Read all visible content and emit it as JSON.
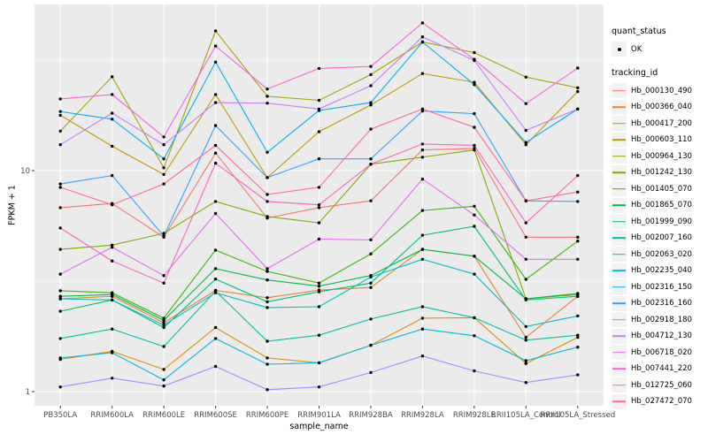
{
  "figure": {
    "y_axis_title": "FPKM + 1",
    "x_axis_title": "sample_name",
    "panel_background": "#EBEBEB",
    "grid_color": "#FFFFFF",
    "tick_color": "#333333",
    "tick_label_color": "#4D4D4D"
  },
  "legend": {
    "quant_status": {
      "title": "quant_status",
      "items": [
        {
          "label": "OK",
          "symbol": "point-icon",
          "color": "#000000"
        }
      ]
    },
    "tracking_id": {
      "title": "tracking_id"
    }
  },
  "chart_data": {
    "type": "line",
    "title": "",
    "xlabel": "sample_name",
    "ylabel": "FPKM + 1",
    "y_scale": "log10",
    "ylim": [
      0.87,
      56
    ],
    "y_ticks": [
      1,
      10
    ],
    "y_minor_ticks": [
      3.162,
      31.62
    ],
    "grid": true,
    "legend_position": "right",
    "marker": {
      "shape": "solid-circle",
      "color": "#000000"
    },
    "categories": [
      "PB350LA",
      "RRIM600LA",
      "RRIM600LE",
      "RRIM600SE",
      "RRIM600PE",
      "RRIM901LA",
      "RRIM928BA",
      "RRIM928LA",
      "RRIM928LE",
      "RRII105LA_Control",
      "RRII105LA_Stressed"
    ],
    "series": [
      {
        "name": "Hb_000130_490",
        "color": "#F8766D",
        "values": [
          6.8,
          7.1,
          5.0,
          12.0,
          6.1,
          6.8,
          7.3,
          12.4,
          12.6,
          5.0,
          5.0
        ]
      },
      {
        "name": "Hb_000366_040",
        "color": "#EA8331",
        "values": [
          2.63,
          2.7,
          2.05,
          2.87,
          2.66,
          2.88,
          2.96,
          4.4,
          4.1,
          1.76,
          2.7
        ]
      },
      {
        "name": "Hb_000417_200",
        "color": "#D89000",
        "values": [
          1.4,
          1.52,
          1.26,
          1.95,
          1.42,
          1.35,
          1.62,
          2.15,
          2.16,
          1.34,
          1.76
        ]
      },
      {
        "name": "Hb_000603_110",
        "color": "#C09B00",
        "values": [
          17.8,
          12.9,
          9.6,
          22.1,
          9.3,
          15.0,
          19.8,
          27.5,
          25.1,
          13.1,
          22.8
        ]
      },
      {
        "name": "Hb_000964_130",
        "color": "#A3A500",
        "values": [
          15.1,
          26.6,
          10.3,
          42.9,
          21.7,
          20.8,
          27.2,
          38.2,
          34.2,
          26.5,
          23.7
        ]
      },
      {
        "name": "Hb_001242_130",
        "color": "#7CAE00",
        "values": [
          4.4,
          4.6,
          5.2,
          7.25,
          6.2,
          5.8,
          10.7,
          11.5,
          12.4,
          2.63,
          2.75
        ]
      },
      {
        "name": "Hb_001405_070",
        "color": "#39B600",
        "values": [
          2.86,
          2.8,
          2.15,
          4.37,
          3.5,
          3.1,
          4.2,
          6.6,
          6.9,
          3.22,
          4.8
        ]
      },
      {
        "name": "Hb_001865_070",
        "color": "#00BB4E",
        "values": [
          2.7,
          2.75,
          2.1,
          3.6,
          3.2,
          3.0,
          3.35,
          4.4,
          4.1,
          2.63,
          2.78
        ]
      },
      {
        "name": "Hb_001999_090",
        "color": "#00BF7D",
        "values": [
          2.31,
          2.6,
          1.95,
          3.23,
          2.55,
          2.83,
          3.1,
          5.1,
          5.6,
          2.6,
          2.7
        ]
      },
      {
        "name": "Hb_002007_160",
        "color": "#00C1A3",
        "values": [
          1.74,
          1.92,
          1.6,
          2.85,
          1.69,
          1.8,
          2.13,
          2.42,
          2.16,
          1.71,
          1.8
        ]
      },
      {
        "name": "Hb_002063_020",
        "color": "#00BFC4",
        "values": [
          2.63,
          2.6,
          2.0,
          2.8,
          2.4,
          2.42,
          3.3,
          3.97,
          3.4,
          1.97,
          2.2
        ]
      },
      {
        "name": "Hb_002235_040",
        "color": "#00BAE0",
        "values": [
          1.42,
          1.5,
          1.13,
          1.74,
          1.33,
          1.35,
          1.62,
          1.92,
          1.79,
          1.38,
          1.59
        ]
      },
      {
        "name": "Hb_002316_150",
        "color": "#00B0F6",
        "values": [
          18.5,
          17.1,
          11.3,
          31.0,
          12.1,
          18.7,
          20.3,
          38.2,
          24.5,
          13.4,
          19.0
        ]
      },
      {
        "name": "Hb_002316_160",
        "color": "#35A2FF",
        "values": [
          8.7,
          9.5,
          5.06,
          16.0,
          9.3,
          11.3,
          11.3,
          18.6,
          18.1,
          7.3,
          7.25
        ]
      },
      {
        "name": "Hb_002918_180",
        "color": "#9590FF",
        "values": [
          1.05,
          1.15,
          1.06,
          1.3,
          1.02,
          1.05,
          1.22,
          1.45,
          1.24,
          1.1,
          1.19
        ]
      },
      {
        "name": "Hb_004712_130",
        "color": "#C77CFF",
        "values": [
          13.1,
          18.2,
          13.1,
          20.3,
          20.2,
          19.0,
          24.2,
          40.3,
          31.5,
          15.2,
          19.0
        ]
      },
      {
        "name": "Hb_006718_020",
        "color": "#E76BF3",
        "values": [
          3.4,
          4.5,
          3.35,
          6.4,
          3.6,
          4.9,
          4.86,
          9.15,
          6.3,
          3.97,
          3.97
        ]
      },
      {
        "name": "Hb_007441_220",
        "color": "#FA62DB",
        "values": [
          21.1,
          22.1,
          14.2,
          36.6,
          23.4,
          29.0,
          29.6,
          46.6,
          31.9,
          20.1,
          29.1
        ]
      },
      {
        "name": "Hb_012725_060",
        "color": "#FF62BC",
        "values": [
          5.5,
          3.9,
          3.1,
          10.8,
          7.25,
          7.0,
          10.7,
          13.2,
          13.0,
          5.8,
          9.5
        ]
      },
      {
        "name": "Hb_027472_070",
        "color": "#FF6A98",
        "values": [
          8.4,
          7.0,
          8.7,
          13.0,
          7.8,
          8.4,
          15.4,
          19.0,
          15.7,
          7.3,
          8.0
        ]
      }
    ]
  }
}
